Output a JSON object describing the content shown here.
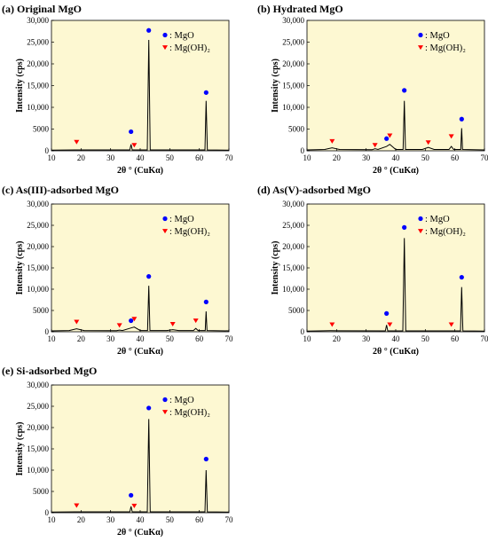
{
  "colors": {
    "plot_bg": "#fdf8d2",
    "line": "#000000",
    "mgo_marker": "#0000ff",
    "mgoh2_marker": "#ff0000"
  },
  "chart_data": [
    {
      "type": "line",
      "title": "(a) Original MgO",
      "xlabel": "2θ ° (CuKα)",
      "ylabel": "Intensity (cps)",
      "xlim": [
        10,
        70
      ],
      "ylim": [
        0,
        30000
      ],
      "xticks": [
        "10",
        "20",
        "30",
        "40",
        "50",
        "60",
        "70"
      ],
      "yticks": [
        "0",
        "5000",
        "10,000",
        "15,000",
        "20,000",
        "25,000",
        "30,000"
      ],
      "legend": [
        {
          "marker": "circle",
          "label": "MgO"
        },
        {
          "marker": "triangle",
          "label": "Mg(OH)₂"
        }
      ],
      "series": [
        {
          "x": [
            10,
            18,
            36.5,
            36.9,
            37.3,
            42.4,
            42.9,
            43.4,
            61.9,
            62.3,
            62.7,
            70
          ],
          "y": [
            150,
            200,
            200,
            1500,
            200,
            200,
            25500,
            200,
            200,
            11500,
            200,
            150
          ]
        }
      ],
      "mgo_markers": [
        {
          "x": 36.9,
          "y": 4400
        },
        {
          "x": 42.9,
          "y": 27700
        },
        {
          "x": 62.3,
          "y": 13400
        }
      ],
      "mgoh2_markers": [
        {
          "x": 18.5,
          "y": 2000
        },
        {
          "x": 38,
          "y": 1300
        }
      ]
    },
    {
      "type": "line",
      "title": "(b) Hydrated MgO",
      "xlabel": "2θ ° (CuKα)",
      "ylabel": "Intensity (cps)",
      "xlim": [
        10,
        70
      ],
      "ylim": [
        0,
        30000
      ],
      "xticks": [
        "10",
        "20",
        "30",
        "40",
        "50",
        "60",
        "70"
      ],
      "yticks": [
        "0",
        "5000",
        "10,000",
        "15,000",
        "20,000",
        "25,000",
        "30,000"
      ],
      "legend": [
        {
          "marker": "circle",
          "label": "MgO"
        },
        {
          "marker": "triangle",
          "label": "Mg(OH)₂"
        }
      ],
      "series": [
        {
          "x": [
            10,
            16,
            18.5,
            21,
            32,
            33,
            34,
            36.9,
            38,
            40,
            42.5,
            42.9,
            43.3,
            49,
            51,
            53,
            58,
            58.8,
            59.6,
            62,
            62.3,
            62.6,
            70
          ],
          "y": [
            200,
            300,
            700,
            300,
            250,
            500,
            300,
            1000,
            1500,
            300,
            300,
            11500,
            300,
            300,
            800,
            300,
            300,
            1000,
            300,
            300,
            5200,
            300,
            200
          ]
        }
      ],
      "mgo_markers": [
        {
          "x": 36.9,
          "y": 2800
        },
        {
          "x": 42.9,
          "y": 13900
        },
        {
          "x": 62.3,
          "y": 7300
        }
      ],
      "mgoh2_markers": [
        {
          "x": 18.5,
          "y": 2200
        },
        {
          "x": 33,
          "y": 1300
        },
        {
          "x": 38,
          "y": 3500
        },
        {
          "x": 51,
          "y": 1900
        },
        {
          "x": 58.8,
          "y": 3300
        }
      ]
    },
    {
      "type": "line",
      "title": "(c) As(III)-adsorbed MgO",
      "xlabel": "2θ ° (CuKα)",
      "ylabel": "Intensity (cps)",
      "xlim": [
        10,
        70
      ],
      "ylim": [
        0,
        30000
      ],
      "xticks": [
        "10",
        "20",
        "30",
        "40",
        "50",
        "60",
        "70"
      ],
      "yticks": [
        "0",
        "5000",
        "10,000",
        "15,000",
        "20,000",
        "25,000",
        "30,000"
      ],
      "legend": [
        {
          "marker": "circle",
          "label": "MgO"
        },
        {
          "marker": "triangle",
          "label": "Mg(OH)₂"
        }
      ],
      "series": [
        {
          "x": [
            10,
            16,
            18.5,
            21,
            32,
            33,
            34,
            36.9,
            38,
            40,
            42.5,
            42.9,
            43.3,
            49,
            51,
            53,
            58,
            58.8,
            59.6,
            62,
            62.3,
            62.6,
            70
          ],
          "y": [
            200,
            300,
            700,
            300,
            250,
            400,
            300,
            900,
            1100,
            300,
            300,
            10800,
            300,
            300,
            500,
            300,
            300,
            800,
            300,
            300,
            4800,
            300,
            200
          ]
        }
      ],
      "mgo_markers": [
        {
          "x": 36.9,
          "y": 2600
        },
        {
          "x": 42.9,
          "y": 13000
        },
        {
          "x": 62.3,
          "y": 7000
        }
      ],
      "mgoh2_markers": [
        {
          "x": 18.5,
          "y": 2300
        },
        {
          "x": 33,
          "y": 1500
        },
        {
          "x": 38,
          "y": 3000
        },
        {
          "x": 51,
          "y": 1800
        },
        {
          "x": 58.8,
          "y": 2600
        }
      ]
    },
    {
      "type": "line",
      "title": "(d) As(V)-adsorbed MgO",
      "xlabel": "2θ ° (CuKα)",
      "ylabel": "Intensity (cps)",
      "xlim": [
        10,
        70
      ],
      "ylim": [
        0,
        30000
      ],
      "xticks": [
        "10",
        "20",
        "30",
        "40",
        "50",
        "60",
        "70"
      ],
      "yticks": [
        "0",
        "5000",
        "10,000",
        "15,000",
        "20,000",
        "25,000",
        "30,000"
      ],
      "legend": [
        {
          "marker": "circle",
          "label": "MgO"
        },
        {
          "marker": "triangle",
          "label": "Mg(OH)₂"
        }
      ],
      "series": [
        {
          "x": [
            10,
            18,
            36.5,
            36.9,
            37.3,
            42.4,
            42.9,
            43.4,
            61.9,
            62.3,
            62.7,
            70
          ],
          "y": [
            150,
            250,
            200,
            1600,
            200,
            200,
            22000,
            200,
            200,
            10500,
            200,
            150
          ]
        }
      ],
      "mgo_markers": [
        {
          "x": 36.9,
          "y": 4300
        },
        {
          "x": 42.9,
          "y": 24500
        },
        {
          "x": 62.3,
          "y": 12800
        }
      ],
      "mgoh2_markers": [
        {
          "x": 18.5,
          "y": 1700
        },
        {
          "x": 38,
          "y": 1700
        },
        {
          "x": 58.8,
          "y": 1700
        }
      ]
    },
    {
      "type": "line",
      "title": "(e) Si-adsorbed MgO",
      "xlabel": "2θ ° (CuKα)",
      "ylabel": "Intensity (cps)",
      "xlim": [
        10,
        70
      ],
      "ylim": [
        0,
        30000
      ],
      "xticks": [
        "10",
        "20",
        "30",
        "40",
        "50",
        "60",
        "70"
      ],
      "yticks": [
        "0",
        "5000",
        "10,000",
        "15,000",
        "20,000",
        "25,000",
        "30,000"
      ],
      "legend": [
        {
          "marker": "circle",
          "label": "MgO"
        },
        {
          "marker": "triangle",
          "label": "Mg(OH)₂"
        }
      ],
      "series": [
        {
          "x": [
            10,
            18,
            36.5,
            36.9,
            37.3,
            42.4,
            42.9,
            43.4,
            61.9,
            62.3,
            62.7,
            70
          ],
          "y": [
            150,
            200,
            200,
            1500,
            200,
            200,
            22000,
            200,
            200,
            10000,
            200,
            150
          ]
        }
      ],
      "mgo_markers": [
        {
          "x": 36.9,
          "y": 4100
        },
        {
          "x": 42.9,
          "y": 24600
        },
        {
          "x": 62.3,
          "y": 12600
        }
      ],
      "mgoh2_markers": [
        {
          "x": 18.5,
          "y": 1700
        },
        {
          "x": 38,
          "y": 1600
        }
      ]
    }
  ]
}
